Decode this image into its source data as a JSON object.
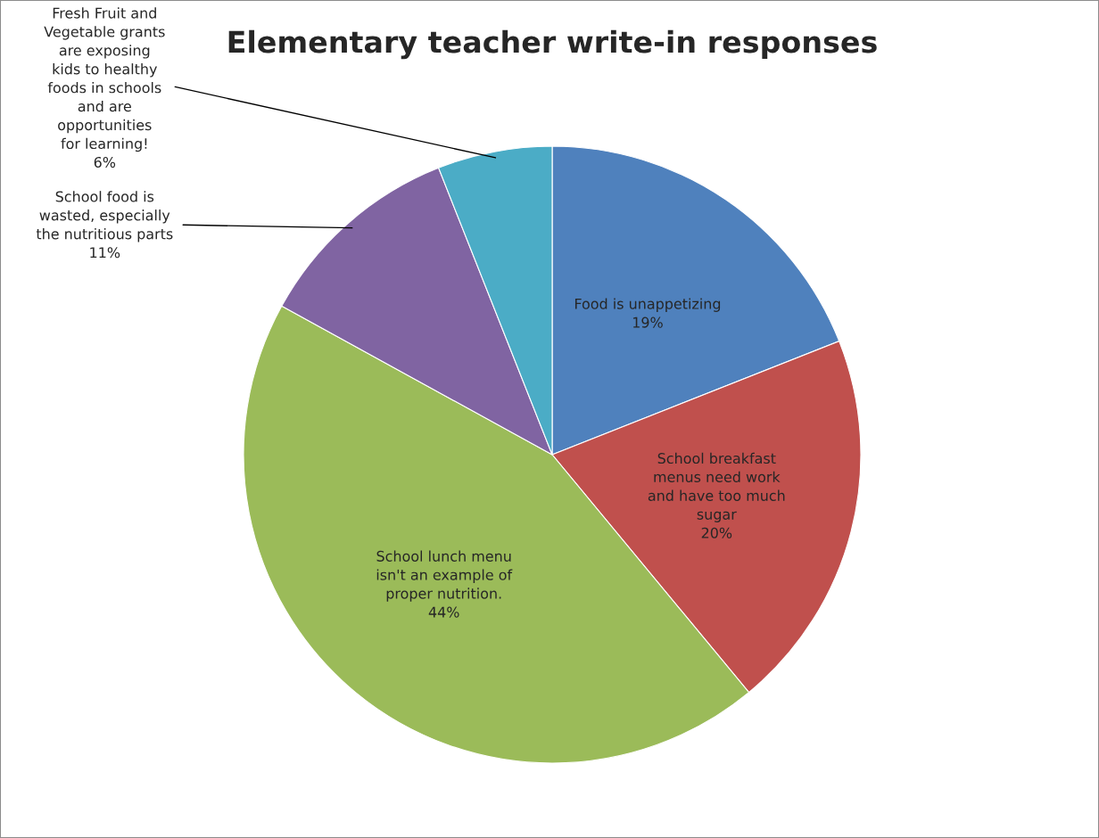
{
  "chart_data": {
    "type": "pie",
    "title": "Elementary teacher write-in responses",
    "categories": [
      "Food is unappetizing",
      "School breakfast\nmenus need work\nand have too much\nsugar",
      "School lunch menu\nisn't an example of\nproper nutrition.",
      "School food is\nwasted, especially\nthe nutritious parts",
      "Fresh Fruit and\nVegetable grants\nare exposing\nkids to healthy\nfoods in schools\nand are\nopportunities\nfor learning!"
    ],
    "values": [
      19,
      20,
      44,
      11,
      6
    ],
    "colors": [
      "#4f81bd",
      "#c0504d",
      "#9bbb59",
      "#8064a2",
      "#4bacc6"
    ],
    "value_labels": [
      "19%",
      "20%",
      "44%",
      "11%",
      "6%"
    ]
  }
}
